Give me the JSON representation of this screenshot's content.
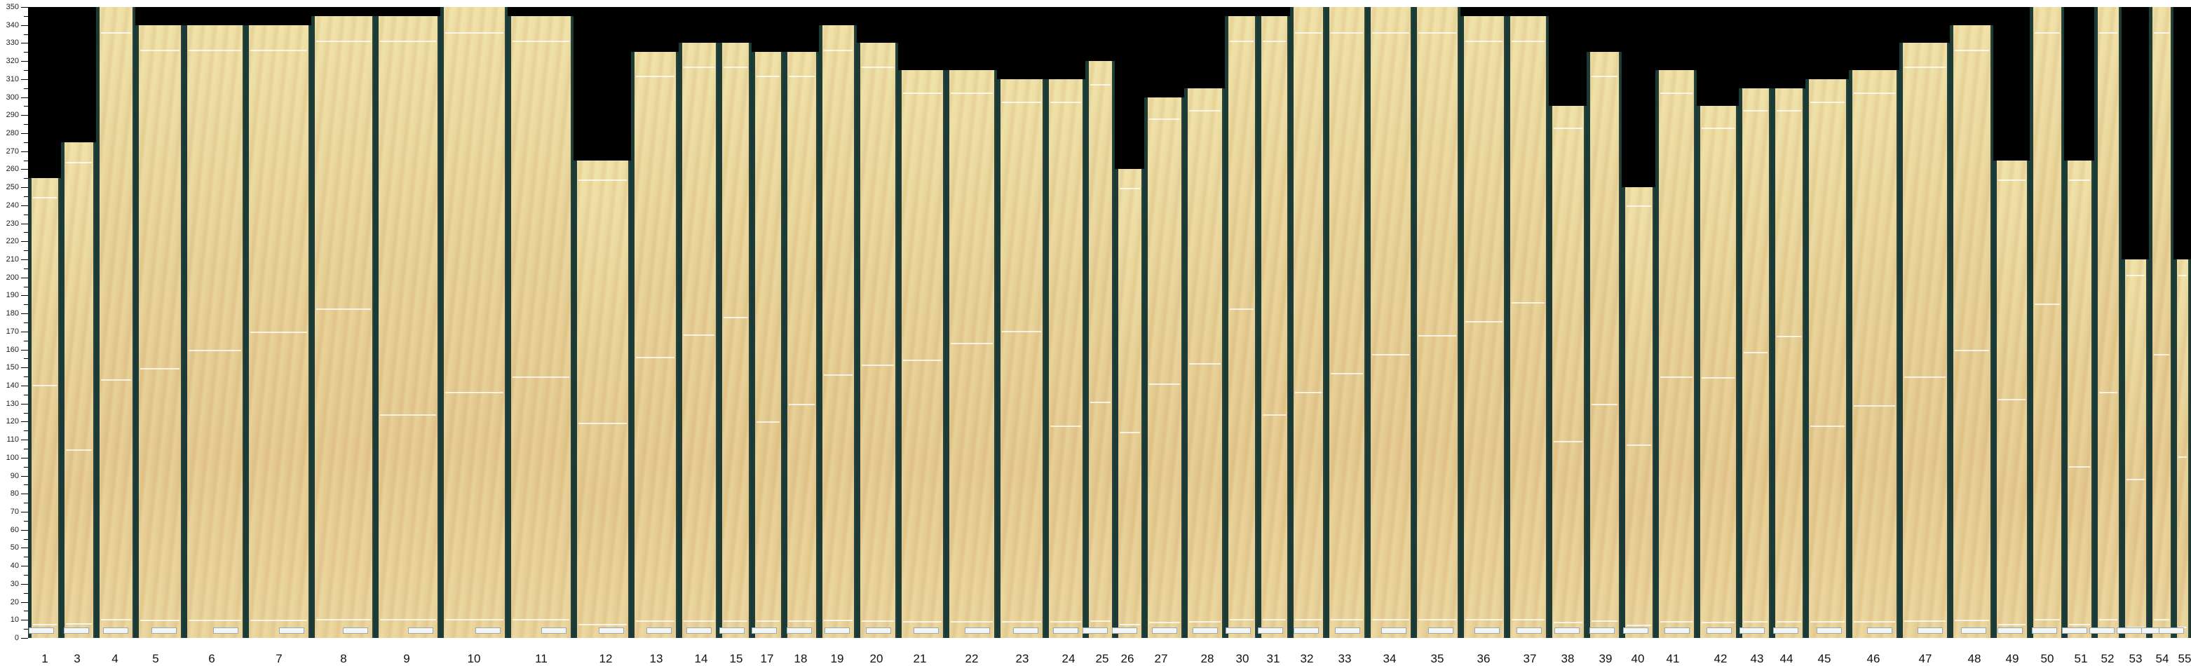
{
  "axis": {
    "unit_range": [
      0,
      350
    ],
    "tick_labels": [
      "0",
      "10",
      "20",
      "30",
      "40",
      "50",
      "60",
      "70",
      "80",
      "90",
      "100",
      "110",
      "120",
      "130",
      "140",
      "150",
      "160",
      "170",
      "180",
      "190",
      "200",
      "210",
      "220",
      "230",
      "240",
      "250",
      "260",
      "270",
      "280",
      "290",
      "300",
      "310",
      "320",
      "330",
      "340",
      "350"
    ]
  },
  "colors": {
    "background_top": "#000000",
    "gap": "#1b3a36",
    "wood": "#e6d096"
  },
  "boards": [
    {
      "label": "1",
      "length": 255
    },
    {
      "label": "3",
      "length": 275
    },
    {
      "label": "4",
      "length": 350
    },
    {
      "label": "5",
      "length": 340
    },
    {
      "label": "6",
      "length": 340
    },
    {
      "label": "7",
      "length": 340
    },
    {
      "label": "8",
      "length": 345
    },
    {
      "label": "9",
      "length": 345
    },
    {
      "label": "10",
      "length": 350
    },
    {
      "label": "11",
      "length": 345
    },
    {
      "label": "12",
      "length": 265
    },
    {
      "label": "13",
      "length": 325
    },
    {
      "label": "14",
      "length": 330
    },
    {
      "label": "15",
      "length": 330
    },
    {
      "label": "17",
      "length": 325
    },
    {
      "label": "18",
      "length": 325
    },
    {
      "label": "19",
      "length": 340
    },
    {
      "label": "20",
      "length": 330
    },
    {
      "label": "21",
      "length": 315
    },
    {
      "label": "22",
      "length": 315
    },
    {
      "label": "23",
      "length": 310
    },
    {
      "label": "24",
      "length": 310
    },
    {
      "label": "25",
      "length": 320
    },
    {
      "label": "26",
      "length": 260
    },
    {
      "label": "27",
      "length": 300
    },
    {
      "label": "28",
      "length": 305
    },
    {
      "label": "30",
      "length": 345
    },
    {
      "label": "31",
      "length": 345
    },
    {
      "label": "32",
      "length": 350
    },
    {
      "label": "33",
      "length": 350
    },
    {
      "label": "34",
      "length": 350
    },
    {
      "label": "35",
      "length": 350
    },
    {
      "label": "36",
      "length": 345
    },
    {
      "label": "37",
      "length": 345
    },
    {
      "label": "38",
      "length": 295
    },
    {
      "label": "39",
      "length": 325
    },
    {
      "label": "40",
      "length": 250
    },
    {
      "label": "41",
      "length": 315
    },
    {
      "label": "42",
      "length": 295
    },
    {
      "label": "43",
      "length": 305
    },
    {
      "label": "44",
      "length": 305
    },
    {
      "label": "45",
      "length": 310
    },
    {
      "label": "46",
      "length": 315
    },
    {
      "label": "47",
      "length": 330
    },
    {
      "label": "48",
      "length": 340
    },
    {
      "label": "49",
      "length": 265
    },
    {
      "label": "50",
      "length": 350
    },
    {
      "label": "51",
      "length": 265
    },
    {
      "label": "52",
      "length": 350
    },
    {
      "label": "53",
      "length": 210
    },
    {
      "label": "54",
      "length": 350
    },
    {
      "label": "55",
      "length": 210
    }
  ]
}
